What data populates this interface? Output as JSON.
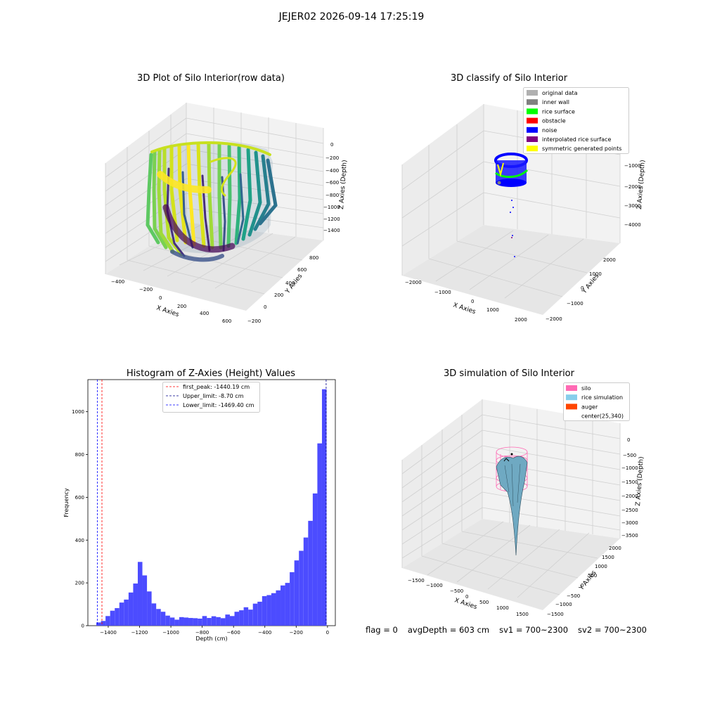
{
  "figure": {
    "suptitle": "JEJER02 2026-09-14 17:25:19",
    "footer": {
      "flag": "flag = 0",
      "avg_depth": "avgDepth = 603 cm",
      "sv1": "sv1 = 700~2300",
      "sv2": "sv2 = 700~2300"
    }
  },
  "chart_data": [
    {
      "type": "scatter",
      "projection": "3d",
      "title": "3D Plot of Silo Interior(row data)",
      "xlabel": "X Axies",
      "ylabel": "Y Axies",
      "zlabel": "Z Axies (Depth)",
      "x_ticks": [
        "−400",
        "−200",
        "0",
        "200",
        "400",
        "600"
      ],
      "y_ticks": [
        "−200",
        "0",
        "200",
        "400",
        "600",
        "800"
      ],
      "z_ticks": [
        "0",
        "−200",
        "−400",
        "−600",
        "−800",
        "−1000",
        "−1200",
        "−1400"
      ],
      "xlim": [
        -450,
        650
      ],
      "ylim": [
        -200,
        900
      ],
      "zlim": [
        -1500,
        0
      ],
      "colormap": "viridis",
      "colors": [
        "#440154",
        "#3b528b",
        "#21918c",
        "#5ec962",
        "#fde725"
      ]
    },
    {
      "type": "scatter",
      "projection": "3d",
      "title": "3D classify of Silo Interior",
      "xlabel": "X Axies",
      "ylabel": "Y Axies",
      "zlabel": "Z Axies (Depth)",
      "x_ticks": [
        "−2000",
        "−1000",
        "0",
        "1000",
        "2000"
      ],
      "y_ticks": [
        "−2000",
        "−1000",
        "0",
        "1000",
        "2000"
      ],
      "z_ticks": [
        "−1000",
        "−2000",
        "−3000",
        "−4000"
      ],
      "legend_position": "top-right",
      "legend": [
        {
          "label": "original data",
          "color": "#b0b0b0"
        },
        {
          "label": "inner wall",
          "color": "#808080"
        },
        {
          "label": "rice surface",
          "color": "#00ff00"
        },
        {
          "label": "obstacle",
          "color": "#ff0000"
        },
        {
          "label": "noise",
          "color": "#0000ff"
        },
        {
          "label": "interpolated rice surface",
          "color": "#800080"
        },
        {
          "label": "symmetric generated points",
          "color": "#ffff00"
        }
      ]
    },
    {
      "type": "bar",
      "title": "Histogram of Z-Axies (Height) Values",
      "xlabel": "Depth (cm)",
      "ylabel": "Frequency",
      "xlim": [
        -1530,
        50
      ],
      "ylim": [
        0,
        1150
      ],
      "x_ticks": [
        -1400,
        -1200,
        -1000,
        -800,
        -600,
        -400,
        -200,
        0
      ],
      "x_tick_labels": [
        "−1400",
        "−1200",
        "−1000",
        "−800",
        "−600",
        "−400",
        "−200",
        "0"
      ],
      "y_ticks": [
        0,
        200,
        400,
        600,
        800,
        1000
      ],
      "bar_color": "#4c4cff",
      "bin_start": -1476,
      "bin_width": 29.4,
      "counts": [
        15,
        22,
        45,
        70,
        82,
        108,
        122,
        155,
        197,
        298,
        235,
        160,
        104,
        78,
        65,
        47,
        38,
        28,
        40,
        38,
        36,
        35,
        33,
        45,
        36,
        44,
        40,
        35,
        52,
        45,
        65,
        72,
        86,
        75,
        103,
        112,
        138,
        143,
        152,
        165,
        188,
        200,
        250,
        305,
        350,
        412,
        490,
        618,
        852,
        1105
      ],
      "lines": [
        {
          "label": "first_peak: -1440.19 cm",
          "value": -1440.19,
          "color": "#ff0000"
        },
        {
          "label": "Upper_limit: -8.70 cm",
          "value": -8.7,
          "color": "#00008b"
        },
        {
          "label": "Lower_limit: -1469.40 cm",
          "value": -1469.4,
          "color": "#0000ff"
        }
      ],
      "legend_position": "top-center"
    },
    {
      "type": "area",
      "projection": "3d",
      "title": "3D simulation of Silo Interior",
      "xlabel": "X Axies",
      "ylabel": "Y Axies",
      "zlabel": "Z Axies (Depth)",
      "x_ticks": [
        "−1500",
        "−1000",
        "−500",
        "0",
        "500",
        "1000",
        "1500"
      ],
      "y_ticks": [
        "−1500",
        "−1000",
        "−500",
        "0",
        "500",
        "1000",
        "1500",
        "2000"
      ],
      "z_ticks": [
        "0",
        "−500",
        "−1000",
        "−1500",
        "−2000",
        "−2500",
        "−3000",
        "−3500"
      ],
      "legend_position": "top-right",
      "legend": [
        {
          "label": "silo",
          "color": "#ff69b4"
        },
        {
          "label": "rice simulation",
          "color": "#87ceeb"
        },
        {
          "label": "auger",
          "color": "#ff4500"
        },
        {
          "label": "center(25,340)",
          "color": "#ffffff"
        }
      ]
    }
  ]
}
